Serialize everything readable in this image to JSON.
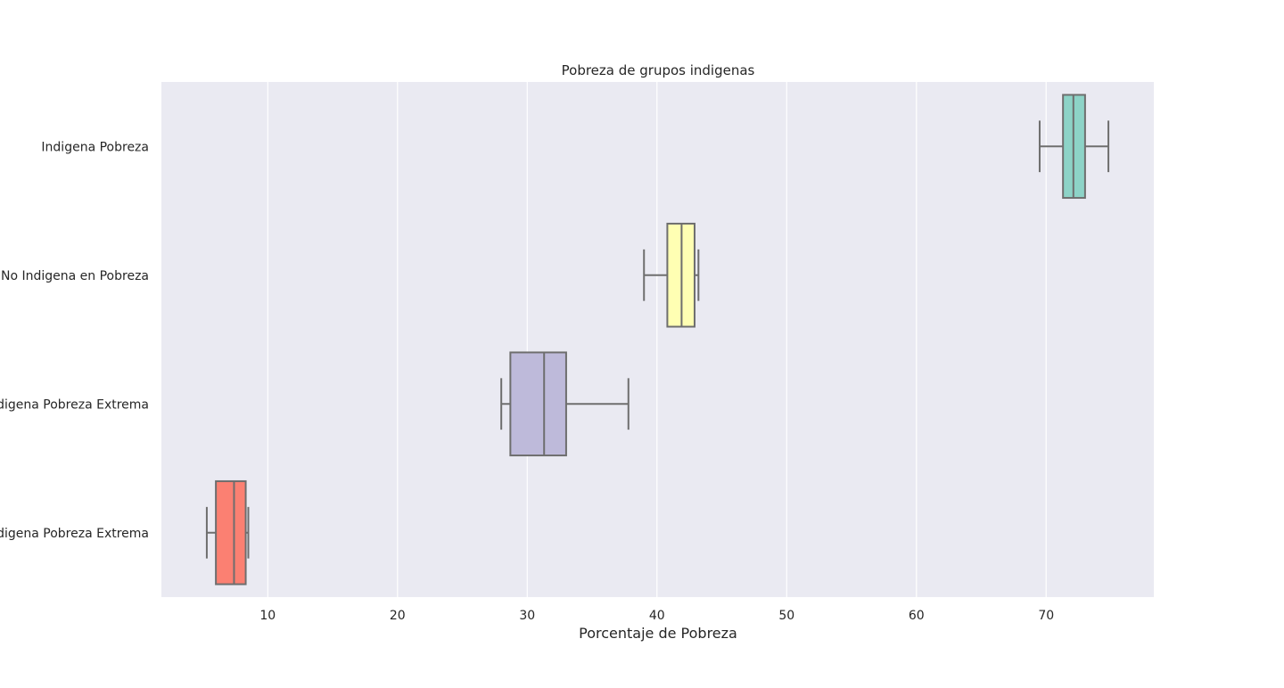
{
  "chart_data": {
    "type": "box",
    "orientation": "horizontal",
    "title": "Pobreza de grupos indigenas",
    "xlabel": "Porcentaje de Pobreza",
    "ylabel": "",
    "xlim": [
      1.8,
      78.3
    ],
    "xticks": [
      10,
      20,
      30,
      40,
      50,
      60,
      70
    ],
    "grid": true,
    "categories": [
      "Indigena Pobreza",
      "No Indigena en Pobreza",
      "Indigena Pobreza Extrema",
      "No Indigena Pobreza Extrema"
    ],
    "boxes": [
      {
        "category": "Indigena Pobreza",
        "whisker_low": 69.5,
        "q1": 71.3,
        "median": 72.1,
        "q3": 73.0,
        "whisker_high": 74.8,
        "color": "#8dd3c7"
      },
      {
        "category": "No Indigena en Pobreza",
        "whisker_low": 39.0,
        "q1": 40.8,
        "median": 41.9,
        "q3": 42.9,
        "whisker_high": 43.2,
        "color": "#ffffb3"
      },
      {
        "category": "Indigena Pobreza Extrema",
        "whisker_low": 28.0,
        "q1": 28.7,
        "median": 31.3,
        "q3": 33.0,
        "whisker_high": 37.8,
        "color": "#bebada"
      },
      {
        "category": "No Indigena Pobreza Extrema",
        "whisker_low": 5.3,
        "q1": 6.0,
        "median": 7.4,
        "q3": 8.3,
        "whisker_high": 8.5,
        "color": "#fb8072"
      }
    ],
    "colors": {
      "plot_background": "#eaeaf2",
      "grid": "#ffffff",
      "box_edge": "#6e6e6e"
    }
  }
}
